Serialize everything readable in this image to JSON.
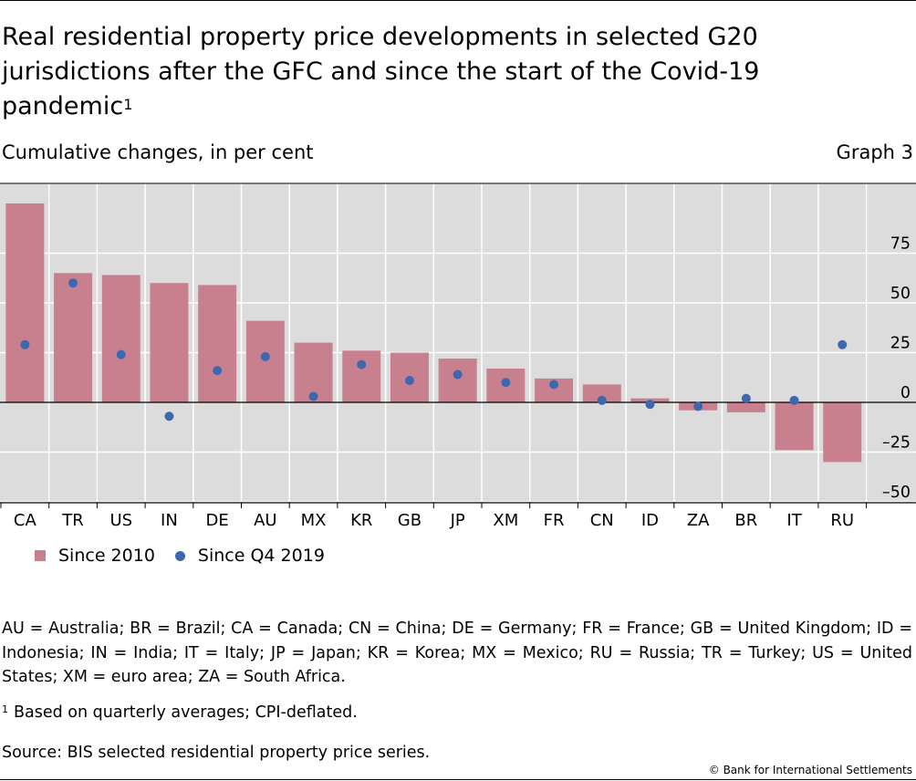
{
  "header": {
    "title": "Real residential property price developments in selected G20 jurisdictions after the GFC and since the start of the Covid-19 pandemic",
    "title_footnote_marker": "1",
    "subtitle": "Cumulative changes, in per cent",
    "graph_number": "Graph 3"
  },
  "legend": {
    "bar_label": "Since 2010",
    "dot_label": "Since Q4 2019"
  },
  "colors": {
    "bar": "#c8808f",
    "dot": "#3d68b0",
    "plot_bg": "#dcdcdc",
    "grid": "#ffffff"
  },
  "chart_data": {
    "type": "bar",
    "categories": [
      "CA",
      "TR",
      "US",
      "IN",
      "DE",
      "AU",
      "MX",
      "KR",
      "GB",
      "JP",
      "XM",
      "FR",
      "CN",
      "ID",
      "ZA",
      "BR",
      "IT",
      "RU"
    ],
    "series": [
      {
        "name": "Since 2010",
        "kind": "bar",
        "values": [
          100,
          65,
          64,
          60,
          59,
          41,
          30,
          26,
          25,
          22,
          17,
          12,
          9,
          2,
          -4,
          -5,
          -24,
          -30
        ]
      },
      {
        "name": "Since Q4 2019",
        "kind": "dot",
        "values": [
          29,
          60,
          24,
          -7,
          16,
          23,
          3,
          19,
          11,
          14,
          10,
          9,
          1,
          -1,
          -2,
          2,
          1,
          29
        ]
      }
    ],
    "y_ticks": [
      75,
      50,
      25,
      0,
      -25,
      -50
    ],
    "y_tick_labels": [
      "75",
      "50",
      "25",
      "0",
      "–25",
      "–50"
    ],
    "ylim": [
      -50,
      100
    ],
    "y_axis_side": "right",
    "grid": true
  },
  "notes": {
    "abbreviations": "AU = Australia; BR = Brazil; CA = Canada; CN = China; DE = Germany; FR = France; GB = United Kingdom; ID = Indonesia; IN = India; IT = Italy; JP = Japan; KR = Korea; MX = Mexico; RU = Russia; TR = Turkey; US = United States; XM = euro area; ZA = South Africa.",
    "footnote_marker": "1",
    "footnote_text": "Based on quarterly averages; CPI-deflated.",
    "source": "Source: BIS selected residential property price series.",
    "copyright": "© Bank for International Settlements"
  }
}
